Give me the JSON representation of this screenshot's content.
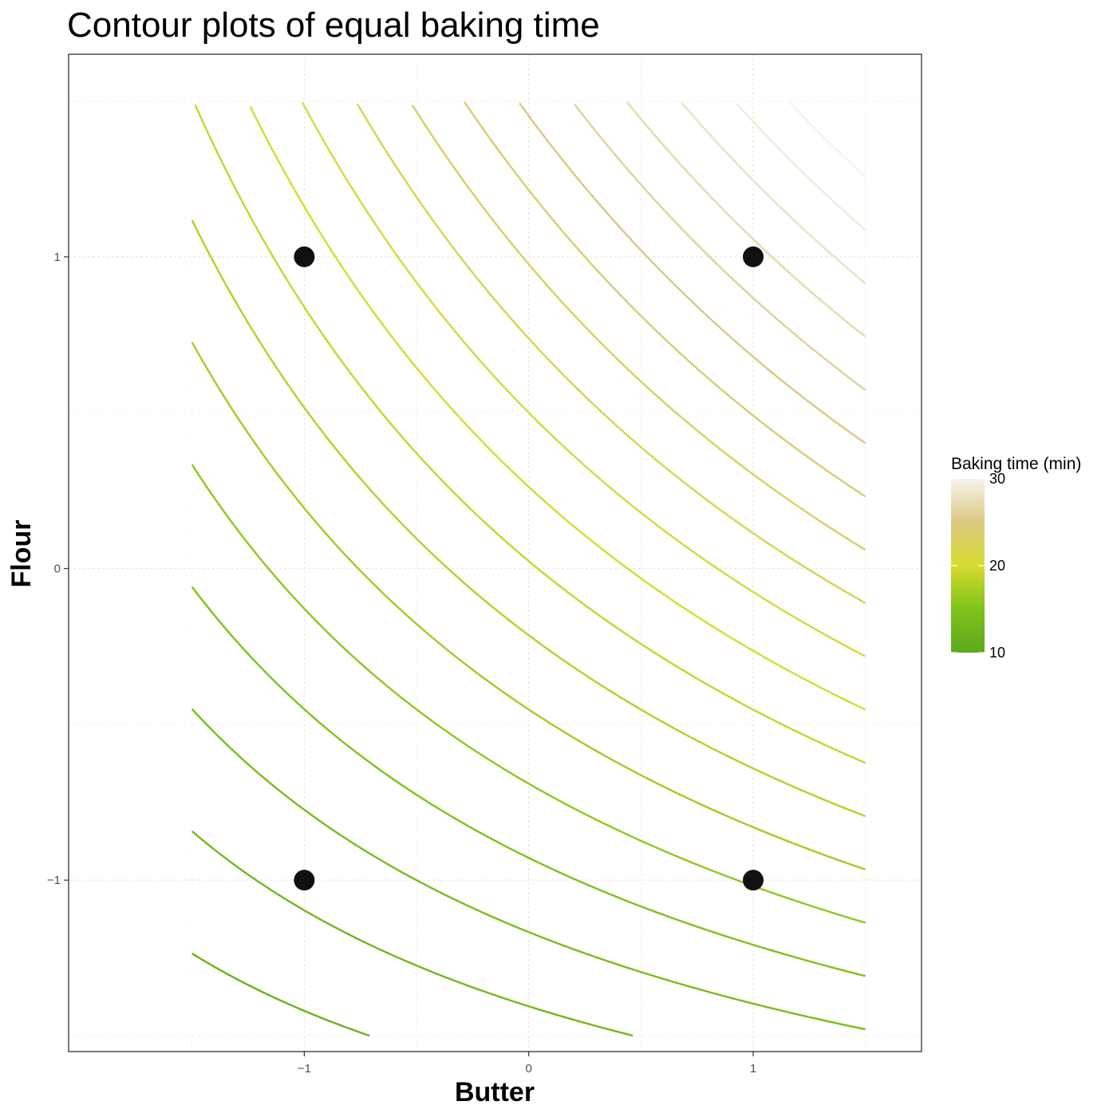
{
  "chart_data": {
    "type": "contour",
    "title": "Contour plots of equal baking time",
    "xlabel": "Butter",
    "ylabel": "Flour",
    "xlim": [
      -2.05,
      1.75
    ],
    "ylim": [
      -1.55,
      1.65
    ],
    "x_grid_range": [
      -1.5,
      1.5
    ],
    "y_grid_range": [
      -1.5,
      1.5
    ],
    "x_ticks": [
      -1,
      0,
      1
    ],
    "x_tick_labels": [
      "−1",
      "0",
      "1"
    ],
    "y_ticks": [
      -1,
      0,
      1
    ],
    "y_tick_labels": [
      "−1",
      "0",
      "1"
    ],
    "grid": true,
    "contour_levels": [
      10,
      11,
      12,
      13,
      14,
      15,
      16,
      17,
      18,
      19,
      20,
      21,
      22,
      23,
      24,
      25,
      26,
      27,
      28,
      29,
      30
    ],
    "design_points": [
      {
        "x": -1,
        "y": -1
      },
      {
        "x": 1,
        "y": -1
      },
      {
        "x": -1,
        "y": 1
      },
      {
        "x": 1,
        "y": 1
      }
    ],
    "legend": {
      "title": "Baking time (min)",
      "position": "right",
      "min": 10,
      "max": 30,
      "labels": [
        "30",
        "20",
        "10"
      ],
      "colors": {
        "10": "#5fa81e",
        "15": "#7ec21a",
        "20": "#d6dc2e",
        "25": "#dbc880",
        "30": "#f4f4ec"
      }
    }
  }
}
